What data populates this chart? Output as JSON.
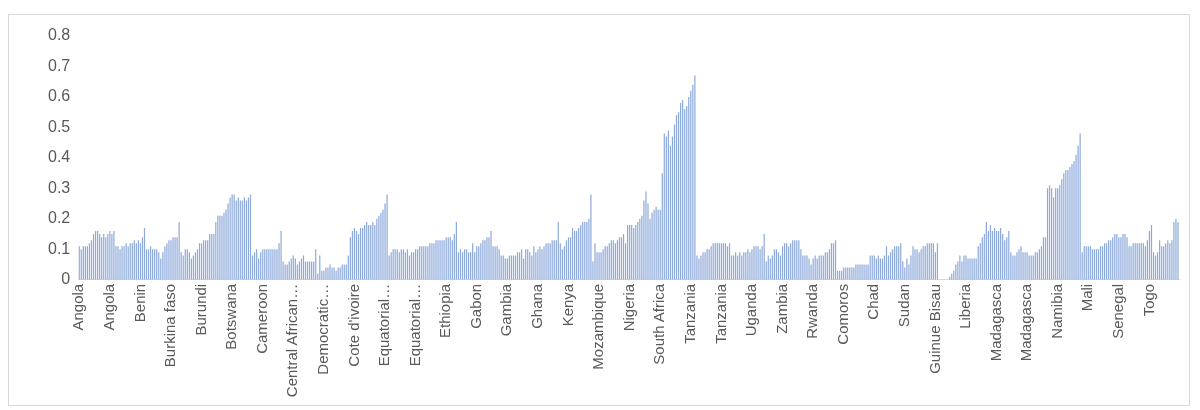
{
  "chart_data": {
    "type": "bar",
    "color": "#8eaadb",
    "grid": false,
    "legend": false,
    "ylim": [
      0,
      0.8
    ],
    "yticks": [
      0,
      0.1,
      0.2,
      0.3,
      0.4,
      0.5,
      0.6,
      0.7,
      0.8
    ],
    "categories": [
      "Angola",
      null,
      null,
      null,
      null,
      null,
      null,
      null,
      null,
      null,
      null,
      null,
      null,
      null,
      null,
      "Angola",
      null,
      null,
      null,
      null,
      null,
      null,
      null,
      null,
      null,
      null,
      null,
      null,
      null,
      null,
      "Benin",
      null,
      null,
      null,
      null,
      null,
      null,
      null,
      null,
      null,
      null,
      null,
      null,
      null,
      null,
      "Burkina faso",
      null,
      null,
      null,
      null,
      null,
      null,
      null,
      null,
      null,
      null,
      null,
      null,
      null,
      null,
      "Burundi",
      null,
      null,
      null,
      null,
      null,
      null,
      null,
      null,
      null,
      null,
      null,
      null,
      null,
      null,
      "Botswana",
      null,
      null,
      null,
      null,
      null,
      null,
      null,
      null,
      null,
      null,
      null,
      null,
      null,
      null,
      "Cameroon",
      null,
      null,
      null,
      null,
      null,
      null,
      null,
      null,
      null,
      null,
      null,
      null,
      null,
      null,
      "Central African…",
      null,
      null,
      null,
      null,
      null,
      null,
      null,
      null,
      null,
      null,
      null,
      null,
      null,
      null,
      "Democratic…",
      null,
      null,
      null,
      null,
      null,
      null,
      null,
      null,
      null,
      null,
      null,
      null,
      null,
      null,
      "Cote d'ivoire",
      null,
      null,
      null,
      null,
      null,
      null,
      null,
      null,
      null,
      null,
      null,
      null,
      null,
      null,
      "Equatorial…",
      null,
      null,
      null,
      null,
      null,
      null,
      null,
      null,
      null,
      null,
      null,
      null,
      null,
      null,
      "Equatorial…",
      null,
      null,
      null,
      null,
      null,
      null,
      null,
      null,
      null,
      null,
      null,
      null,
      null,
      null,
      "Ethiopia",
      null,
      null,
      null,
      null,
      null,
      null,
      null,
      null,
      null,
      null,
      null,
      null,
      null,
      null,
      "Gabon",
      null,
      null,
      null,
      null,
      null,
      null,
      null,
      null,
      null,
      null,
      null,
      null,
      null,
      null,
      "Gambia",
      null,
      null,
      null,
      null,
      null,
      null,
      null,
      null,
      null,
      null,
      null,
      null,
      null,
      null,
      "Ghana",
      null,
      null,
      null,
      null,
      null,
      null,
      null,
      null,
      null,
      null,
      null,
      null,
      null,
      null,
      "Kenya",
      null,
      null,
      null,
      null,
      null,
      null,
      null,
      null,
      null,
      null,
      null,
      null,
      null,
      null,
      "Mozambique",
      null,
      null,
      null,
      null,
      null,
      null,
      null,
      null,
      null,
      null,
      null,
      null,
      null,
      null,
      "Nigeria",
      null,
      null,
      null,
      null,
      null,
      null,
      null,
      null,
      null,
      null,
      null,
      null,
      null,
      null,
      "South Africa",
      null,
      null,
      null,
      null,
      null,
      null,
      null,
      null,
      null,
      null,
      null,
      null,
      null,
      null,
      "Tanzania",
      null,
      null,
      null,
      null,
      null,
      null,
      null,
      null,
      null,
      null,
      null,
      null,
      null,
      null,
      "Tanzania",
      null,
      null,
      null,
      null,
      null,
      null,
      null,
      null,
      null,
      null,
      null,
      null,
      null,
      null,
      "Uganda",
      null,
      null,
      null,
      null,
      null,
      null,
      null,
      null,
      null,
      null,
      null,
      null,
      null,
      null,
      "Zambia",
      null,
      null,
      null,
      null,
      null,
      null,
      null,
      null,
      null,
      null,
      null,
      null,
      null,
      null,
      "Rwanda",
      null,
      null,
      null,
      null,
      null,
      null,
      null,
      null,
      null,
      null,
      null,
      null,
      null,
      null,
      "Comoros",
      null,
      null,
      null,
      null,
      null,
      null,
      null,
      null,
      null,
      null,
      null,
      null,
      null,
      null,
      "Chad",
      null,
      null,
      null,
      null,
      null,
      null,
      null,
      null,
      null,
      null,
      null,
      null,
      null,
      null,
      "Sudan",
      null,
      null,
      null,
      null,
      null,
      null,
      null,
      null,
      null,
      null,
      null,
      null,
      null,
      null,
      "Guinue Bisau",
      null,
      null,
      null,
      null,
      null,
      null,
      null,
      null,
      null,
      null,
      null,
      null,
      null,
      null,
      "Liberia",
      null,
      null,
      null,
      null,
      null,
      null,
      null,
      null,
      null,
      null,
      null,
      null,
      null,
      null,
      "Madagasca",
      null,
      null,
      null,
      null,
      null,
      null,
      null,
      null,
      null,
      null,
      null,
      null,
      null,
      null,
      "Madagasca",
      null,
      null,
      null,
      null,
      null,
      null,
      null,
      null,
      null,
      null,
      null,
      null,
      null,
      null,
      "Namibia",
      null,
      null,
      null,
      null,
      null,
      null,
      null,
      null,
      null,
      null,
      null,
      null,
      null,
      null,
      "Mali",
      null,
      null,
      null,
      null,
      null,
      null,
      null,
      null,
      null,
      null,
      null,
      null,
      null,
      null,
      "Senegal",
      null,
      null,
      null,
      null,
      null,
      null,
      null,
      null,
      null,
      null,
      null,
      null,
      null,
      null,
      "Togo",
      null,
      null,
      null,
      null,
      null,
      null,
      null,
      null,
      null,
      null,
      null,
      null,
      null,
      null
    ],
    "values": [
      0.11,
      0.1,
      0.11,
      0.11,
      0.11,
      0.12,
      0.13,
      0.15,
      0.16,
      0.16,
      0.15,
      0.14,
      0.15,
      0.14,
      0.15,
      0.16,
      0.15,
      0.16,
      0.11,
      0.11,
      0.1,
      0.11,
      0.11,
      0.12,
      0.11,
      0.12,
      0.12,
      0.13,
      0.12,
      0.13,
      0.12,
      0.14,
      0.17,
      0.1,
      0.1,
      0.11,
      0.1,
      0.1,
      0.1,
      0.09,
      0.07,
      0.09,
      0.11,
      0.12,
      0.13,
      0.13,
      0.14,
      0.14,
      0.14,
      0.19,
      0.09,
      0.08,
      0.1,
      0.1,
      0.09,
      0.07,
      0.08,
      0.09,
      0.1,
      0.12,
      0.12,
      0.13,
      0.13,
      0.13,
      0.15,
      0.15,
      0.15,
      0.19,
      0.21,
      0.21,
      0.21,
      0.22,
      0.23,
      0.25,
      0.27,
      0.28,
      0.28,
      0.26,
      0.27,
      0.26,
      0.26,
      0.27,
      0.26,
      0.27,
      0.28,
      0.08,
      0.09,
      0.1,
      0.07,
      0.09,
      0.1,
      0.1,
      0.1,
      0.1,
      0.1,
      0.1,
      0.1,
      0.1,
      0.12,
      0.16,
      0.06,
      0.05,
      0.05,
      0.06,
      0.07,
      0.08,
      0.07,
      0.05,
      0.06,
      0.07,
      0.08,
      0.06,
      0.06,
      0.06,
      0.06,
      0.06,
      0.1,
      0.02,
      0.08,
      0.03,
      0.03,
      0.04,
      0.04,
      0.05,
      0.04,
      0.04,
      0.03,
      0.04,
      0.04,
      0.05,
      0.05,
      0.05,
      0.08,
      0.14,
      0.16,
      0.17,
      0.16,
      0.15,
      0.17,
      0.17,
      0.18,
      0.19,
      0.18,
      0.18,
      0.19,
      0.18,
      0.2,
      0.21,
      0.22,
      0.23,
      0.25,
      0.28,
      0.08,
      0.09,
      0.1,
      0.1,
      0.1,
      0.09,
      0.1,
      0.1,
      0.09,
      0.1,
      0.08,
      0.09,
      0.09,
      0.1,
      0.1,
      0.11,
      0.11,
      0.11,
      0.11,
      0.11,
      0.12,
      0.12,
      0.12,
      0.13,
      0.13,
      0.13,
      0.13,
      0.13,
      0.14,
      0.14,
      0.14,
      0.13,
      0.15,
      0.19,
      0.09,
      0.1,
      0.09,
      0.1,
      0.1,
      0.09,
      0.09,
      0.12,
      0.09,
      0.11,
      0.11,
      0.12,
      0.13,
      0.13,
      0.14,
      0.14,
      0.16,
      0.11,
      0.11,
      0.11,
      0.1,
      0.08,
      0.08,
      0.07,
      0.07,
      0.08,
      0.08,
      0.08,
      0.08,
      0.09,
      0.09,
      0.1,
      0.07,
      0.1,
      0.1,
      0.09,
      0.08,
      0.11,
      0.09,
      0.1,
      0.11,
      0.1,
      0.11,
      0.12,
      0.12,
      0.12,
      0.13,
      0.13,
      0.13,
      0.19,
      0.12,
      0.1,
      0.11,
      0.13,
      0.14,
      0.14,
      0.17,
      0.16,
      0.16,
      0.17,
      0.18,
      0.19,
      0.19,
      0.19,
      0.2,
      0.28,
      0.06,
      0.12,
      0.09,
      0.09,
      0.09,
      0.1,
      0.11,
      0.11,
      0.12,
      0.13,
      0.13,
      0.12,
      0.13,
      0.14,
      0.14,
      0.15,
      0.12,
      0.18,
      0.18,
      0.18,
      0.17,
      0.18,
      0.19,
      0.2,
      0.21,
      0.26,
      0.29,
      0.25,
      0.2,
      0.22,
      0.23,
      0.24,
      0.23,
      0.23,
      0.35,
      0.48,
      0.47,
      0.49,
      0.44,
      0.47,
      0.51,
      0.54,
      0.55,
      0.58,
      0.59,
      0.56,
      0.57,
      0.6,
      0.62,
      0.64,
      0.67,
      0.08,
      0.07,
      0.08,
      0.09,
      0.09,
      0.1,
      0.1,
      0.11,
      0.12,
      0.12,
      0.12,
      0.12,
      0.12,
      0.12,
      0.12,
      0.11,
      0.12,
      0.08,
      0.08,
      0.09,
      0.08,
      0.09,
      0.08,
      0.09,
      0.09,
      0.1,
      0.09,
      0.1,
      0.11,
      0.11,
      0.11,
      0.1,
      0.11,
      0.15,
      0.06,
      0.08,
      0.07,
      0.08,
      0.1,
      0.1,
      0.09,
      0.08,
      0.11,
      0.12,
      0.12,
      0.11,
      0.12,
      0.13,
      0.13,
      0.13,
      0.13,
      0.1,
      0.08,
      0.08,
      0.08,
      0.07,
      0.05,
      0.07,
      0.08,
      0.07,
      0.08,
      0.08,
      0.08,
      0.09,
      0.09,
      0.1,
      0.12,
      0.12,
      0.13,
      0.03,
      0.03,
      0.03,
      0.04,
      0.04,
      0.04,
      0.04,
      0.04,
      0.04,
      0.05,
      0.05,
      0.05,
      0.05,
      0.05,
      0.05,
      0.05,
      0.08,
      0.08,
      0.08,
      0.07,
      0.08,
      0.07,
      0.07,
      0.08,
      0.11,
      0.08,
      0.09,
      0.1,
      0.11,
      0.11,
      0.11,
      0.12,
      0.06,
      0.04,
      0.07,
      0.05,
      0.08,
      0.11,
      0.1,
      0.1,
      0.09,
      0.1,
      0.11,
      0.11,
      0.12,
      0.12,
      0.12,
      0.12,
      0.09,
      0.12,
      0,
      0,
      0,
      0,
      0,
      0.01,
      0.02,
      0.03,
      0.05,
      0.06,
      0.08,
      0.06,
      0.08,
      0.08,
      0.07,
      0.07,
      0.07,
      0.07,
      0.07,
      0.11,
      0.12,
      0.14,
      0.15,
      0.19,
      0.16,
      0.18,
      0.16,
      0.17,
      0.16,
      0.16,
      0.17,
      0.15,
      0.13,
      0.14,
      0.16,
      0.09,
      0.08,
      0.08,
      0.09,
      0.1,
      0.11,
      0.09,
      0.09,
      0.09,
      0.08,
      0.08,
      0.08,
      0.09,
      0.09,
      0.1,
      0.11,
      0.14,
      0.14,
      0.3,
      0.31,
      0.3,
      0.27,
      0.3,
      0.3,
      0.31,
      0.33,
      0.35,
      0.36,
      0.36,
      0.37,
      0.38,
      0.39,
      0.41,
      0.44,
      0.48,
      0.09,
      0.11,
      0.11,
      0.11,
      0.11,
      0.1,
      0.1,
      0.1,
      0.1,
      0.11,
      0.11,
      0.12,
      0.12,
      0.13,
      0.13,
      0.14,
      0.15,
      0.15,
      0.14,
      0.14,
      0.15,
      0.15,
      0.14,
      0.11,
      0.11,
      0.12,
      0.12,
      0.12,
      0.12,
      0.12,
      0.12,
      0.11,
      0.13,
      0.16,
      0.18,
      0.09,
      0.08,
      0.09,
      0.13,
      0.11,
      0.11,
      0.12,
      0.13,
      0.12,
      0.13,
      0.19,
      0.2,
      0.19
    ]
  }
}
